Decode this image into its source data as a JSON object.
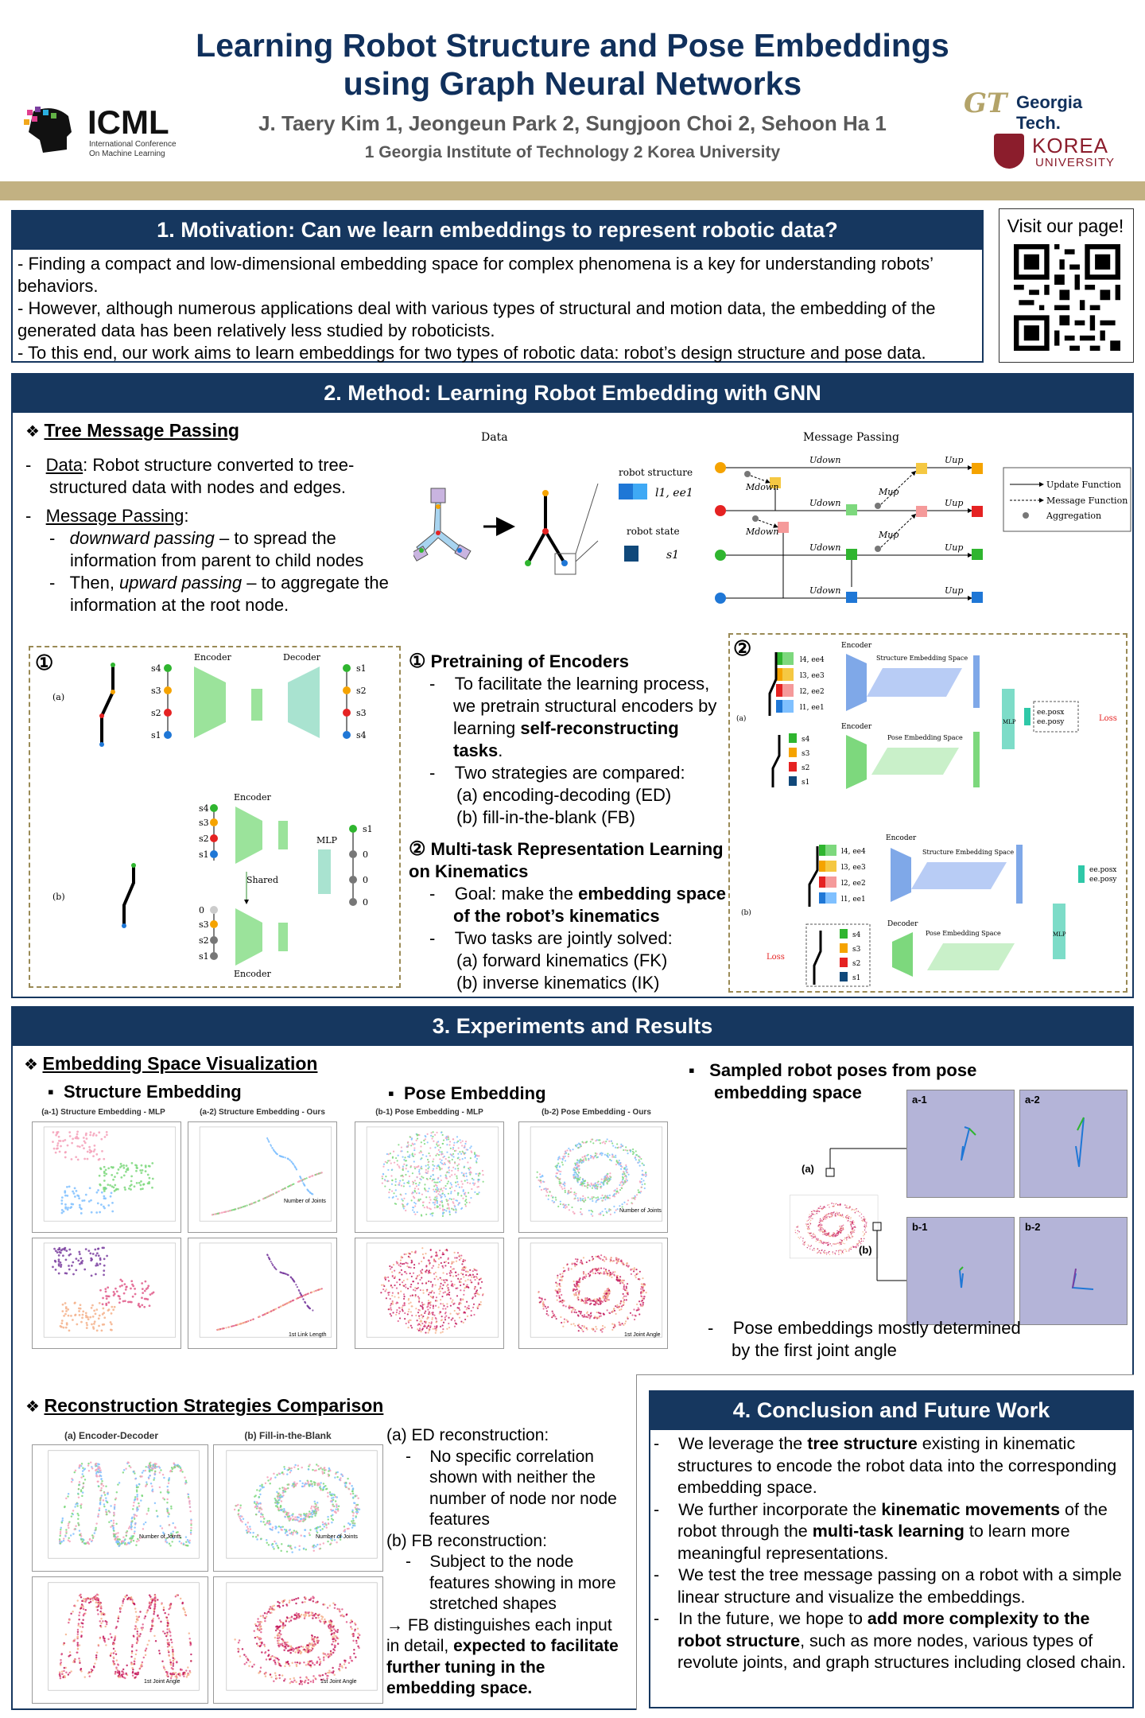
{
  "header": {
    "title_line1": "Learning Robot Structure and Pose Embeddings",
    "title_line2": "using Graph Neural Networks",
    "authors": "J. Taery Kim 1, Jeongeun Park 2, Sungjoon Choi 2, Sehoon Ha 1",
    "affiliations": "1 Georgia Institute of Technology   2 Korea University",
    "icml_logo": "ICML",
    "icml_sub1": "International Conference",
    "icml_sub2": "On Machine Learning",
    "gt_logo": "Georgia Tech.",
    "korea_logo_1": "KOREA",
    "korea_logo_2": "UNIVERSITY"
  },
  "motivation": {
    "heading": "1. Motivation: Can we learn embeddings to represent robotic data?",
    "p1": "- Finding a compact and low-dimensional embedding space for complex phenomena is a key for understanding robots’ behaviors.",
    "p2": "- However, although numerous applications deal with various types of structural and motion data, the embedding of the generated data has been relatively less studied by roboticists.",
    "p3": "- To this end, our work aims to learn embeddings for two types of robotic data: robot’s design structure and pose data."
  },
  "qr": {
    "label": "Visit our page!"
  },
  "method": {
    "heading": "2. Method: Learning Robot Embedding with GNN",
    "tmp_title": "Tree Message Passing",
    "data_label": "Data",
    "data_text": ": Robot structure converted to tree-structured data with nodes and edges.",
    "mp_label": "Message Passing",
    "down_em": "downward passing",
    "down_text": " – to spread the information from parent to child nodes",
    "up_pre": "Then, ",
    "up_em": "upward passing",
    "up_text": " – to aggregate the information at the root node.",
    "fig_data": "Data",
    "fig_mp": "Message Passing",
    "fig_robot_structure": "robot structure",
    "fig_robot_state": "robot state",
    "fig_l1ee1": "l1, ee1",
    "fig_s1": "s1",
    "fig_udown": "Udown",
    "fig_uup": "Uup",
    "fig_mdown": "Mdown",
    "fig_mup": "Mup",
    "legend_update": "Update Function",
    "legend_message": "Message Function",
    "legend_agg": "Aggregation",
    "circ1": "①",
    "circ2": "②",
    "pre_title": "Pretraining of Encoders",
    "pre_b1": "To facilitate the learning process, we pretrain structural encoders by learning ",
    "pre_b1_bold": "self-reconstructing tasks",
    "pre_b2": "Two strategies are compared:",
    "pre_b2a": "(a) encoding-decoding (ED)",
    "pre_b2b": "(b) fill-in-the-blank (FB)",
    "mt_title": "Multi-task Representation Learning on Kinematics",
    "mt_b1": "Goal: make the ",
    "mt_b1_bold": "embedding space of the robot’s kinematics",
    "mt_b2": "Two tasks are jointly solved:",
    "mt_b2a": "(a) forward kinematics (FK)",
    "mt_b2b": "(b) inverse kinematics (IK)",
    "lbl_a": "(a)",
    "lbl_b": "(b)",
    "encoder": "Encoder",
    "decoder": "Decoder",
    "shared": "Shared",
    "mlp": "MLP",
    "loss": "Loss",
    "struct_space": "Structure Embedding Space",
    "pose_space": "Pose Embedding Space",
    "s4": "s4",
    "s3": "s3",
    "s2": "s2",
    "s1": "s1",
    "l4": "l4, ee4",
    "l3": "l3, ee3",
    "l2": "l2, ee2",
    "l1": "l1, ee1",
    "eepos": "ee.posx",
    "eepos2": "ee.posy",
    "zero": "0"
  },
  "experiments": {
    "heading": "3. Experiments and Results",
    "esv_title": "Embedding Space Visualization",
    "struct_emb": "Structure Embedding",
    "pose_emb": "Pose Embedding",
    "p_a1": "(a-1) Structure Embedding - MLP",
    "p_a2": "(a-2) Structure Embedding - Ours",
    "p_b1": "(b-1) Pose Embedding - MLP",
    "p_b2": "(b-2) Pose Embedding - Ours",
    "legend_joints": "Number of Joints",
    "legend_link": "1st Link Length",
    "legend_angle": "1st Joint Angle",
    "sampled_title": "Sampled robot poses from pose embedding space",
    "pose_a1": "a-1",
    "pose_a2": "a-2",
    "pose_b1": "b-1",
    "pose_b2": "b-2",
    "marker_a": "(a)",
    "marker_b": "(b)",
    "pose_note": "Pose embeddings mostly determined by the first joint angle",
    "rsc_title": "Reconstruction Strategies Comparison",
    "r_a": "(a) Encoder-Decoder",
    "r_b": "(b) Fill-in-the-Blank",
    "ed_head": "(a) ED reconstruction:",
    "ed_text": "No specific correlation shown with neither the number of node nor node features",
    "fb_head": "(b) FB reconstruction:",
    "fb_text": "Subject to the node features showing in more stretched shapes",
    "concl_pre": "→ FB distinguishes each input in detail, ",
    "concl_bold": "expected to facilitate further tuning in the embedding space."
  },
  "conclusion": {
    "heading": "4. Conclusion and Future Work",
    "c1_a": "We leverage the ",
    "c1_b": "tree structure",
    "c1_c": " existing in kinematic structures to encode the robot data into the corresponding embedding space.",
    "c2_a": "We further incorporate the ",
    "c2_b": "kinematic movements",
    "c2_c": " of the robot through the ",
    "c2_d": "multi-task learning",
    "c2_e": " to learn more meaningful representations.",
    "c3": "We test the tree message passing on a robot with a simple linear structure and visualize the embeddings.",
    "c4_a": "In the future, we hope to ",
    "c4_b": "add more complexity to the robot structure",
    "c4_c": ", such as more nodes, various types of revolute joints, and graph structures including closed chain."
  },
  "colors": {
    "navy": "#16375f",
    "gold": "#c2b182",
    "green": "#2fb52f",
    "red": "#e52222",
    "blue": "#1f77d6",
    "orange": "#f5a300"
  }
}
